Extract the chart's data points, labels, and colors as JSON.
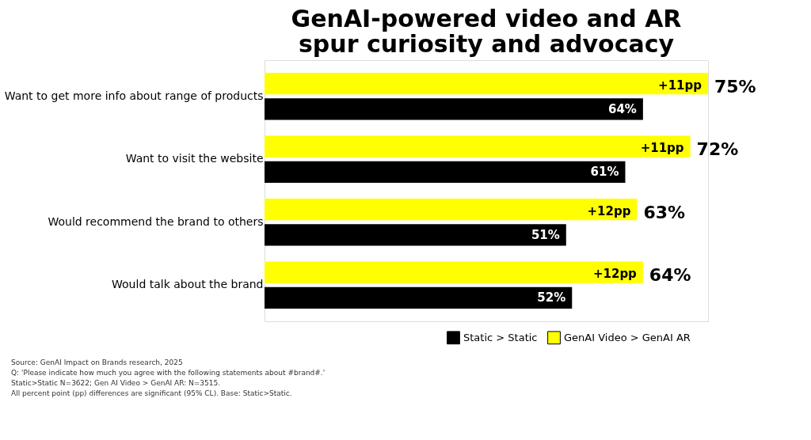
{
  "chart_data": {
    "type": "bar",
    "orientation": "horizontal",
    "title": "GenAI-powered video and AR spur curiosity and advocacy",
    "categories": [
      "Want to get more info about range of products",
      "Want to visit the website",
      "Would recommend the brand to others",
      "Would talk about the brand"
    ],
    "series": [
      {
        "name": "Static > Static",
        "color": "#000000",
        "values": [
          64,
          61,
          51,
          52
        ],
        "value_labels": [
          "64%",
          "61%",
          "51%",
          "52%"
        ]
      },
      {
        "name": "GenAI Video > GenAI AR",
        "color": "#ffff00",
        "values": [
          75,
          72,
          63,
          64
        ]
      }
    ],
    "legend": "bottom right",
    "grid": false,
    "tick_labels": "y",
    "annotations": [
      {
        "text": "75%",
        "x": 75,
        "y": "Want to get more info about range of products"
      },
      {
        "text": "72%",
        "x": 72,
        "y": "Want to visit the website"
      },
      {
        "text": "63%",
        "x": 63,
        "y": "Would recommend the brand to others"
      },
      {
        "text": "64%",
        "x": 64,
        "y": "Would talk about the brand"
      },
      {
        "text": "+11pp",
        "x": 75,
        "y": "Want to get more info about range of products"
      },
      {
        "text": "+11pp",
        "x": 72,
        "y": "Want to visit the website"
      },
      {
        "text": "+12pp",
        "x": 63,
        "y": "Would recommend the brand to others"
      },
      {
        "text": "+12pp",
        "x": 64,
        "y": "Would talk about the brand"
      },
      "Source: GenAI Impact on Brands research, 2025",
      "Q: 'Please indicate how much you agree with the following statements about #brand#.'",
      "Static>Static N=3622; Gen AI Video > GenAI AR: N=3515.",
      "All percent point (pp) differences are significant (95% CL). Base: Static>Static."
    ]
  }
}
